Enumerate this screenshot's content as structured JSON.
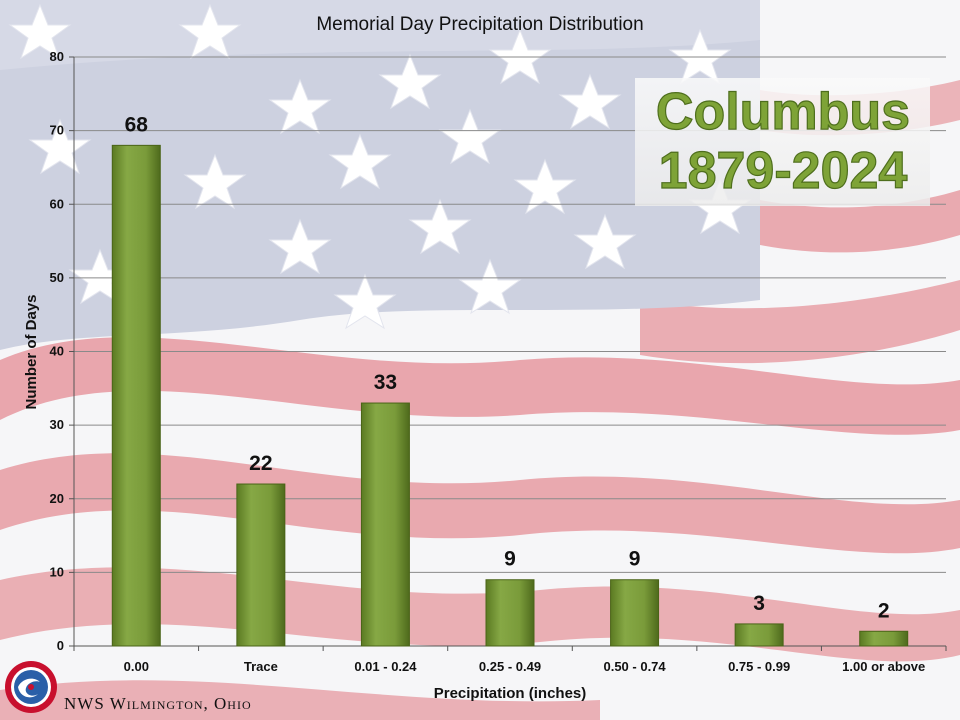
{
  "chart_data": {
    "type": "bar",
    "title": "Memorial Day Precipitation Distribution",
    "xlabel": "Precipitation (inches)",
    "ylabel": "Number of Days",
    "categories": [
      "0.00",
      "Trace",
      "0.01 - 0.24",
      "0.25 - 0.49",
      "0.50 - 0.74",
      "0.75 - 0.99",
      "1.00 or above"
    ],
    "values": [
      68,
      22,
      33,
      9,
      9,
      3,
      2
    ],
    "ylim": [
      0,
      80
    ],
    "yticks": [
      0,
      10,
      20,
      30,
      40,
      50,
      60,
      70,
      80
    ],
    "grid": true,
    "data_labels": true,
    "bar_color": "#77933c"
  },
  "overlay": {
    "site_line1": "Columbus",
    "site_line2": "1879-2024"
  },
  "footer": {
    "office": "NWS Wilmington, Ohio",
    "logo_text": "NATIONAL WEATHER SERVICE"
  },
  "colors": {
    "flag_red": "#e8a7ad",
    "flag_white": "#f6f6f8",
    "flag_blue": "#cdd1e0",
    "title_green": "#7ea337"
  }
}
